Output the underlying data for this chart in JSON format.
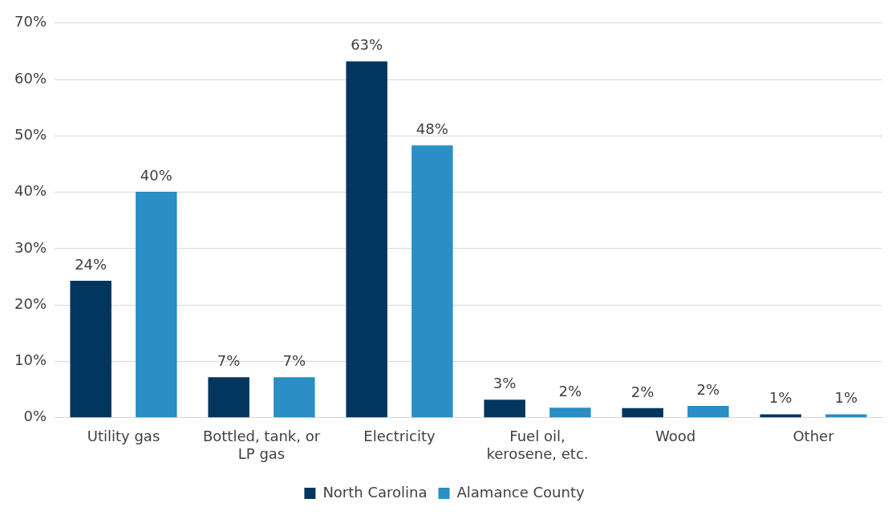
{
  "chart_data": {
    "type": "bar",
    "categories": [
      "Utility gas",
      "Bottled, tank, or LP gas",
      "Electricity",
      "Fuel oil, kerosene, etc.",
      "Wood",
      "Other"
    ],
    "series": [
      {
        "name": "North Carolina",
        "color": "#03365f",
        "values": [
          24.3,
          7.2,
          63.2,
          3.2,
          1.7,
          0.6
        ],
        "value_labels": [
          "24%",
          "7%",
          "63%",
          "3%",
          "2%",
          "1%"
        ]
      },
      {
        "name": "Alamance County",
        "color": "#2b8ec4",
        "values": [
          40.1,
          7.2,
          48.3,
          1.8,
          2.1,
          0.6
        ],
        "value_labels": [
          "40%",
          "7%",
          "48%",
          "2%",
          "2%",
          "1%"
        ]
      }
    ],
    "ylim": [
      0,
      70
    ],
    "yticks": [
      {
        "value": 0,
        "label": "0%"
      },
      {
        "value": 10,
        "label": "10%"
      },
      {
        "value": 20,
        "label": "20%"
      },
      {
        "value": 30,
        "label": "30%"
      },
      {
        "value": 40,
        "label": "40%"
      },
      {
        "value": 50,
        "label": "50%"
      },
      {
        "value": 60,
        "label": "60%"
      },
      {
        "value": 70,
        "label": "70%"
      }
    ],
    "grid": "y",
    "legend": "bottom"
  }
}
